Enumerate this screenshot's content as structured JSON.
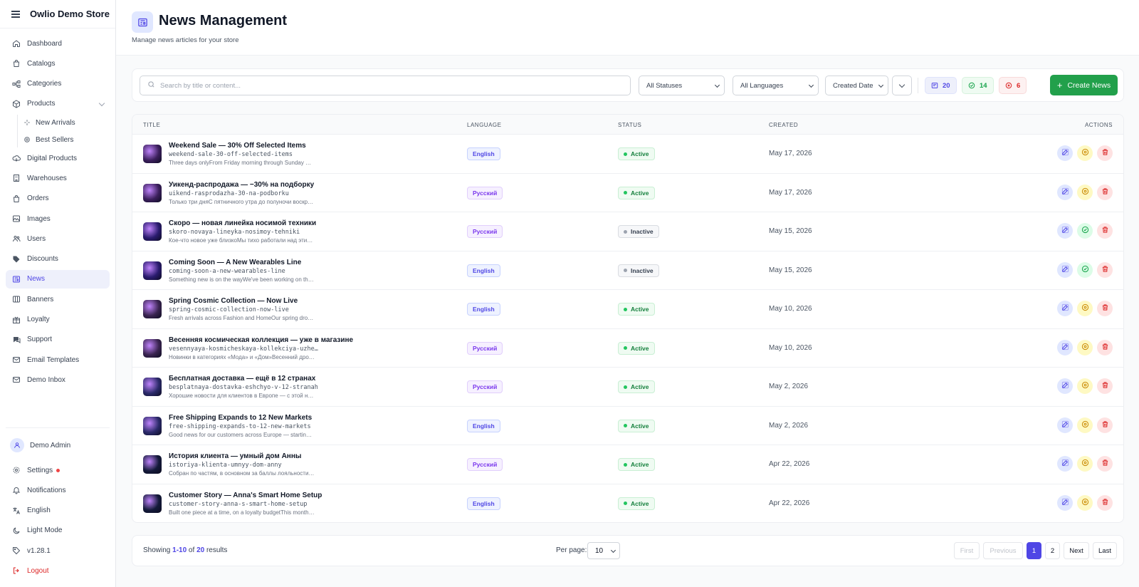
{
  "app": {
    "title": "Owlio Demo Store"
  },
  "sidebar": {
    "items": [
      {
        "label": "Dashboard",
        "icon": "home-icon"
      },
      {
        "label": "Catalogs",
        "icon": "bag-icon"
      },
      {
        "label": "Categories",
        "icon": "tree-icon"
      },
      {
        "label": "Products",
        "icon": "box-icon",
        "expanded": true
      },
      {
        "label": "New Arrivals",
        "icon": "sparkle-icon",
        "sub": true
      },
      {
        "label": "Best Sellers",
        "icon": "award-icon",
        "sub": true
      },
      {
        "label": "Digital Products",
        "icon": "cloud-icon"
      },
      {
        "label": "Warehouses",
        "icon": "building-icon"
      },
      {
        "label": "Orders",
        "icon": "bag-icon"
      },
      {
        "label": "Images",
        "icon": "image-icon"
      },
      {
        "label": "Users",
        "icon": "users-icon"
      },
      {
        "label": "Discounts",
        "icon": "tag-icon"
      },
      {
        "label": "News",
        "icon": "newspaper-icon",
        "active": true
      },
      {
        "label": "Banners",
        "icon": "columns-icon"
      },
      {
        "label": "Loyalty",
        "icon": "gift-icon"
      },
      {
        "label": "Support",
        "icon": "chat-icon"
      },
      {
        "label": "Email Templates",
        "icon": "mail-icon"
      },
      {
        "label": "Demo Inbox",
        "icon": "mail-icon"
      }
    ],
    "bottom": {
      "user": "Demo Admin",
      "settings": "Settings",
      "notifications": "Notifications",
      "language": "English",
      "theme": "Light Mode",
      "version": "v1.28.1",
      "logout": "Logout"
    }
  },
  "header": {
    "title": "News Management",
    "subtitle": "Manage news articles for your store"
  },
  "filters": {
    "search_placeholder": "Search by title or content...",
    "status": "All Statuses",
    "language": "All Languages",
    "sort": "Created Date",
    "stats": {
      "total": "20",
      "active": "14",
      "inactive": "6"
    },
    "create_label": "Create News"
  },
  "table": {
    "columns": {
      "title": "TITLE",
      "language": "LANGUAGE",
      "status": "STATUS",
      "created": "CREATED",
      "actions": "ACTIONS"
    },
    "rows": [
      {
        "title": "Weekend Sale — 30% Off Selected Items",
        "slug": "weekend-sale-30-off-selected-items",
        "excerpt": "Three days onlyFrom Friday morning through Sunday mid...",
        "language": "English",
        "lang": "en",
        "status": "Active",
        "created": "May 17, 2026",
        "thumb": "#3b1f5c"
      },
      {
        "title": "Уикенд-распродажа — −30% на подборку",
        "slug": "uikend-rasprodazha-30-na-podborku",
        "excerpt": "Только три дняС пятничного утра до полуночи воскре...",
        "language": "Русский",
        "lang": "ru",
        "status": "Active",
        "created": "May 17, 2026",
        "thumb": "#3b1f5c"
      },
      {
        "title": "Скоро — новая линейка носимой техники",
        "slug": "skoro-novaya-lineyka-nosimoy-tehniki",
        "excerpt": "Кое-что новое уже близкоМы тихо работали над этим ...",
        "language": "Русский",
        "lang": "ru",
        "status": "Inactive",
        "created": "May 15, 2026",
        "thumb": "#2a1b6e"
      },
      {
        "title": "Coming Soon — A New Wearables Line",
        "slug": "coming-soon-a-new-wearables-line",
        "excerpt": "Something new is on the wayWe've been working on this ...",
        "language": "English",
        "lang": "en",
        "status": "Inactive",
        "created": "May 15, 2026",
        "thumb": "#2a1b6e"
      },
      {
        "title": "Spring Cosmic Collection — Now Live",
        "slug": "spring-cosmic-collection-now-live",
        "excerpt": "Fresh arrivals across Fashion and HomeOur spring drop ju...",
        "language": "English",
        "lang": "en",
        "status": "Active",
        "created": "May 10, 2026",
        "thumb": "#3a2450"
      },
      {
        "title": "Весенняя космическая коллекция — уже в магазине",
        "slug": "vesennyaya-kosmicheskaya-kollekciya-uzhe-v-magazine",
        "excerpt": "Новинки в категориях «Мода» и «Дом»Весенний дроп ...",
        "language": "Русский",
        "lang": "ru",
        "status": "Active",
        "created": "May 10, 2026",
        "thumb": "#3a2450"
      },
      {
        "title": "Бесплатная доставка — ещё в 12 странах",
        "slug": "besplatnaya-dostavka-eshchyo-v-12-stranah",
        "excerpt": "Хорошие новости для клиентов в Европе — с этой нед...",
        "language": "Русский",
        "lang": "ru",
        "status": "Active",
        "created": "May 2, 2026",
        "thumb": "#2b2a6a"
      },
      {
        "title": "Free Shipping Expands to 12 New Markets",
        "slug": "free-shipping-expands-to-12-new-markets",
        "excerpt": "Good news for our customers across Europe — starting t...",
        "language": "English",
        "lang": "en",
        "status": "Active",
        "created": "May 2, 2026",
        "thumb": "#2b2a6a"
      },
      {
        "title": "История клиента — умный дом Анны",
        "slug": "istoriya-klienta-umnyy-dom-anny",
        "excerpt": "Собран по частям, в основном за баллы лояльностиВ ...",
        "language": "Русский",
        "lang": "ru",
        "status": "Active",
        "created": "Apr 22, 2026",
        "thumb": "#141a3a"
      },
      {
        "title": "Customer Story — Anna's Smart Home Setup",
        "slug": "customer-story-anna-s-smart-home-setup",
        "excerpt": "Built one piece at a time, on a loyalty budgetThis month ...",
        "language": "English",
        "lang": "en",
        "status": "Active",
        "created": "Apr 22, 2026",
        "thumb": "#141a3a"
      }
    ]
  },
  "pagination": {
    "showing_prefix": "Showing ",
    "range": "1-10",
    "of": " of ",
    "total": "20",
    "suffix": " results",
    "per_page_label": "Per page:",
    "per_page": "10",
    "first": "First",
    "previous": "Previous",
    "pages": [
      "1",
      "2"
    ],
    "next": "Next",
    "last": "Last"
  },
  "colors": {
    "accent": "#4f46e5",
    "success": "#22a04b",
    "danger": "#dc2626"
  }
}
